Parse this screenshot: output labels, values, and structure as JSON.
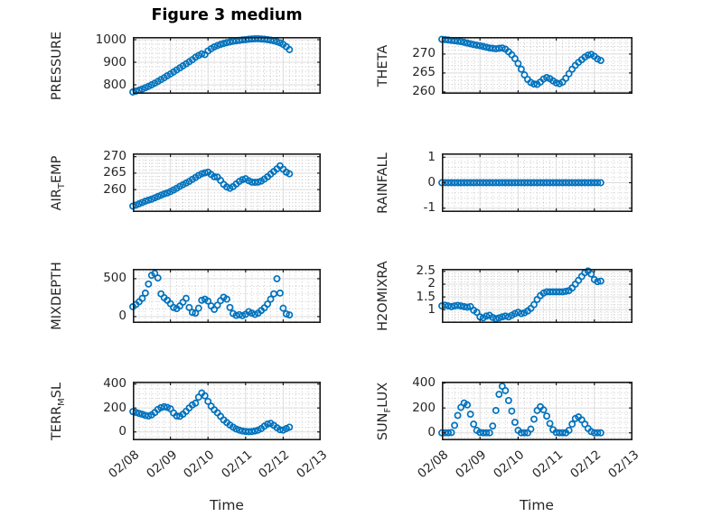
{
  "figure": {
    "title": "Figure 3 medium",
    "xlabel": "Time"
  },
  "colors": {
    "marker": "#0072BD",
    "axis": "#1a1a1a",
    "grid_major": "#dcdcdc",
    "grid_minor": "#c2c2c2",
    "text": "#262626",
    "background": "#ffffff"
  },
  "x_axis": {
    "tick_labels": [
      "02/08",
      "02/09",
      "02/10",
      "02/11",
      "02/12",
      "02/13"
    ],
    "span_days": 5,
    "minor_per_day": 6
  },
  "chart_data": [
    {
      "type": "scatter",
      "id": "pressure",
      "ylabel": {
        "pre": "PRESSURE",
        "sub": "",
        "post": ""
      },
      "yticks": [
        800,
        900,
        1000
      ],
      "ylim": [
        760,
        1012
      ],
      "points": {
        "t0_days": 0,
        "dt_days": 0.083333,
        "values": [
          768,
          772,
          776,
          781,
          787,
          793,
          800,
          807,
          815,
          823,
          831,
          840,
          848,
          857,
          866,
          875,
          884,
          893,
          902,
          911,
          922,
          930,
          937,
          934,
          950,
          960,
          968,
          974,
          979,
          983,
          987,
          990,
          993,
          995,
          997,
          999,
          1000,
          1002,
          1003,
          1004,
          1004,
          1003,
          1002,
          1000,
          998,
          995,
          991,
          986,
          979,
          969,
          956
        ]
      }
    },
    {
      "type": "scatter",
      "id": "theta",
      "ylabel": {
        "pre": "THETA",
        "sub": "",
        "post": ""
      },
      "yticks": [
        260,
        265,
        270
      ],
      "ylim": [
        259.5,
        274.5
      ],
      "points": {
        "t0_days": 0,
        "dt_days": 0.083333,
        "values": [
          273.9,
          273.8,
          273.7,
          273.6,
          273.5,
          273.4,
          273.3,
          273.1,
          272.9,
          272.7,
          272.5,
          272.35,
          272.2,
          272.0,
          271.8,
          271.6,
          271.5,
          271.4,
          271.5,
          271.6,
          271.3,
          270.6,
          269.8,
          268.8,
          267.5,
          266.0,
          264.5,
          263.3,
          262.5,
          262.1,
          262.0,
          262.6,
          263.4,
          263.8,
          263.5,
          262.9,
          262.4,
          262.2,
          262.6,
          263.6,
          264.8,
          266.0,
          267.0,
          267.8,
          268.5,
          269.2,
          269.7,
          269.9,
          269.4,
          268.7,
          268.3
        ]
      }
    },
    {
      "type": "scatter",
      "id": "air-temp",
      "ylabel": {
        "pre": "AIR",
        "sub": "T",
        "post": "EMP"
      },
      "yticks": [
        260,
        265,
        270
      ],
      "ylim": [
        253.2,
        271
      ],
      "points": {
        "t0_days": 0,
        "dt_days": 0.083333,
        "values": [
          255.0,
          255.3,
          255.7,
          256.1,
          256.5,
          256.8,
          257.1,
          257.5,
          257.9,
          258.3,
          258.7,
          259.0,
          259.4,
          259.9,
          260.4,
          261.0,
          261.5,
          262.0,
          262.5,
          263.1,
          263.7,
          264.3,
          264.8,
          265.1,
          265.3,
          264.6,
          263.9,
          263.8,
          262.8,
          261.6,
          260.8,
          260.4,
          260.9,
          261.7,
          262.5,
          263.0,
          263.3,
          262.7,
          262.3,
          262.2,
          262.3,
          262.6,
          263.2,
          263.9,
          264.7,
          265.5,
          266.3,
          267.2,
          266.2,
          265.3,
          264.8
        ]
      }
    },
    {
      "type": "scatter",
      "id": "rainfall",
      "ylabel": {
        "pre": "RAINFALL",
        "sub": "",
        "post": ""
      },
      "yticks": [
        -1,
        0,
        1
      ],
      "ylim": [
        -1.15,
        1.15
      ],
      "points": {
        "t0_days": 0,
        "dt_days": 0.083333,
        "values": [
          0,
          0,
          0,
          0,
          0,
          0,
          0,
          0,
          0,
          0,
          0,
          0,
          0,
          0,
          0,
          0,
          0,
          0,
          0,
          0,
          0,
          0,
          0,
          0,
          0,
          0,
          0,
          0,
          0,
          0,
          0,
          0,
          0,
          0,
          0,
          0,
          0,
          0,
          0,
          0,
          0,
          0,
          0,
          0,
          0,
          0,
          0,
          0,
          0,
          0,
          0
        ]
      }
    },
    {
      "type": "scatter",
      "id": "mixdepth",
      "ylabel": {
        "pre": "MIXDEPTH",
        "sub": "",
        "post": ""
      },
      "yticks": [
        0,
        500
      ],
      "ylim": [
        -85,
        630
      ],
      "points": {
        "t0_days": 0,
        "dt_days": 0.083333,
        "values": [
          130,
          160,
          195,
          240,
          310,
          430,
          545,
          570,
          510,
          300,
          250,
          215,
          170,
          120,
          105,
          140,
          190,
          240,
          120,
          55,
          45,
          110,
          215,
          230,
          205,
          140,
          95,
          150,
          210,
          255,
          230,
          120,
          40,
          15,
          25,
          12,
          30,
          65,
          45,
          28,
          45,
          80,
          115,
          165,
          230,
          300,
          500,
          310,
          110,
          35,
          22
        ]
      }
    },
    {
      "type": "scatter",
      "id": "h2omixra",
      "ylabel": {
        "pre": "H2OMIXRA",
        "sub": "",
        "post": ""
      },
      "yticks": [
        1,
        1.5,
        2,
        2.5
      ],
      "ylim": [
        0.48,
        2.6
      ],
      "points": {
        "t0_days": 0,
        "dt_days": 0.083333,
        "values": [
          1.15,
          1.18,
          1.15,
          1.12,
          1.15,
          1.17,
          1.15,
          1.12,
          1.1,
          1.12,
          0.98,
          0.9,
          0.72,
          0.68,
          0.75,
          0.78,
          0.7,
          0.65,
          0.68,
          0.72,
          0.75,
          0.72,
          0.78,
          0.85,
          0.9,
          0.85,
          0.88,
          0.95,
          1.05,
          1.2,
          1.4,
          1.55,
          1.65,
          1.7,
          1.7,
          1.7,
          1.7,
          1.7,
          1.7,
          1.72,
          1.75,
          1.85,
          2.0,
          2.15,
          2.3,
          2.45,
          2.52,
          2.4,
          2.18,
          2.1,
          2.12
        ]
      }
    },
    {
      "type": "scatter",
      "id": "terr-msl",
      "ylabel": {
        "pre": "TERR",
        "sub": "M",
        "post": "SL"
      },
      "yticks": [
        0,
        200,
        400
      ],
      "ylim": [
        -70,
        420
      ],
      "points": {
        "t0_days": 0,
        "dt_days": 0.083333,
        "values": [
          170,
          163,
          155,
          147,
          138,
          133,
          142,
          162,
          188,
          203,
          210,
          205,
          193,
          158,
          133,
          130,
          148,
          172,
          200,
          225,
          240,
          290,
          325,
          302,
          255,
          215,
          185,
          160,
          130,
          100,
          78,
          58,
          40,
          25,
          15,
          8,
          4,
          2,
          3,
          8,
          15,
          28,
          48,
          65,
          72,
          55,
          35,
          18,
          15,
          28,
          40
        ]
      }
    },
    {
      "type": "scatter",
      "id": "sun-flux",
      "ylabel": {
        "pre": "SUN",
        "sub": "F",
        "post": "LUX"
      },
      "yticks": [
        0,
        200,
        400
      ],
      "ylim": [
        -60,
        412
      ],
      "points": {
        "t0_days": 0,
        "dt_days": 0.083333,
        "values": [
          0,
          0,
          0,
          2,
          60,
          140,
          205,
          240,
          225,
          150,
          70,
          20,
          3,
          0,
          0,
          0,
          55,
          180,
          310,
          375,
          340,
          260,
          175,
          85,
          20,
          0,
          0,
          0,
          30,
          110,
          180,
          210,
          185,
          135,
          75,
          25,
          3,
          0,
          0,
          0,
          20,
          70,
          115,
          128,
          105,
          70,
          35,
          10,
          0,
          0,
          0
        ]
      }
    }
  ]
}
